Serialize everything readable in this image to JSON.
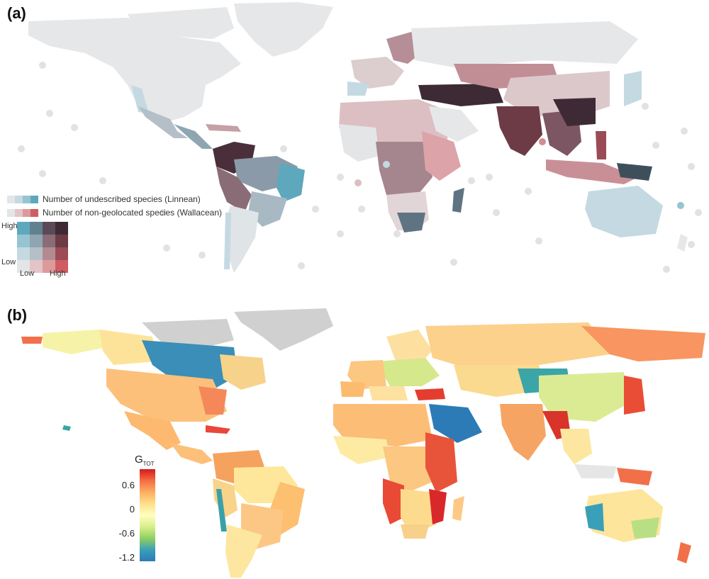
{
  "panels": {
    "a": {
      "label": "(a)",
      "legend": {
        "linnean": "Number of undescribed species (Linnean)",
        "wallacean": "Number of non-geolocated species (Wallacean)",
        "y_high": "High",
        "y_low": "Low",
        "x_low": "Low",
        "x_high": "High"
      },
      "colors": {
        "land_base": "#e6e7e8",
        "blue_scale": [
          "#e3e5e6",
          "#c5d9e2",
          "#97c3d2",
          "#5ea8bd"
        ],
        "red_scale": [
          "#e3e5e6",
          "#e4c4c6",
          "#dc9a9d",
          "#cf5c62"
        ],
        "bivariate_grid": [
          [
            "#5ea8bd",
            "#62818f",
            "#5a4956",
            "#3e2a34"
          ],
          [
            "#97c3d2",
            "#8fa5b2",
            "#8a6c76",
            "#6d3b45"
          ],
          [
            "#c5d9e2",
            "#b5bfc8",
            "#b38a90",
            "#9a4b55"
          ],
          [
            "#e3e5e6",
            "#e4c4c6",
            "#dc9a9d",
            "#cf5c62"
          ]
        ]
      }
    },
    "b": {
      "label": "(b)",
      "colorbar": {
        "title_main": "G",
        "title_sub": "TOT",
        "ticks": [
          "0.6",
          "0",
          "-0.6",
          "-1.2"
        ],
        "gradient": [
          "#d7191c",
          "#f46d43",
          "#fdae61",
          "#fee08b",
          "#ffffbf",
          "#d9ef8b",
          "#91cf60",
          "#3a9fb8",
          "#2c7bb6"
        ]
      }
    }
  }
}
